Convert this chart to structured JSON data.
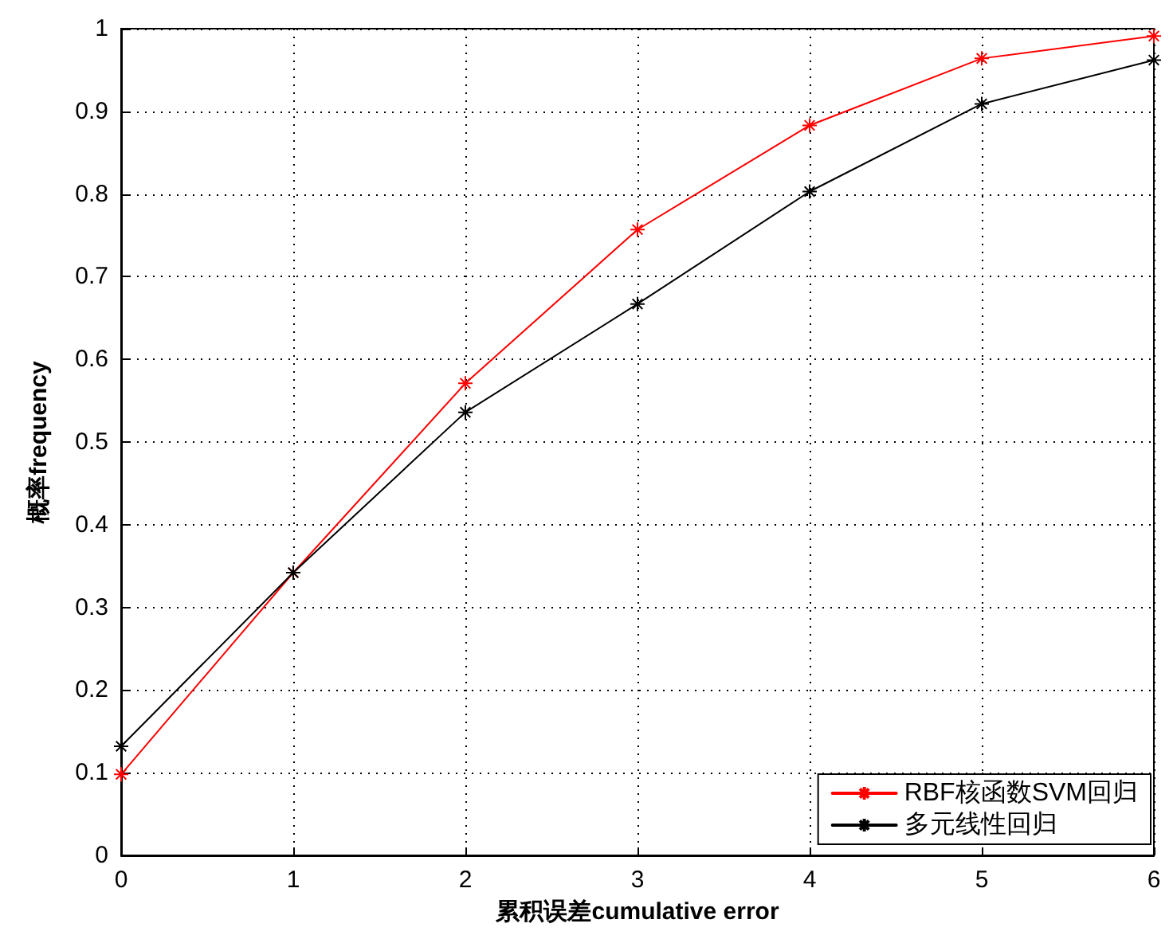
{
  "chart_data": {
    "type": "line",
    "xlabel": "累积误差cumulative error",
    "ylabel": "概率frequency",
    "x": [
      0,
      1,
      2,
      3,
      4,
      5,
      6
    ],
    "series": [
      {
        "name": "RBF核函数SVM回归",
        "color": "#ff0000",
        "values": [
          0.098,
          0.342,
          0.571,
          0.757,
          0.883,
          0.964,
          0.991
        ]
      },
      {
        "name": "多元线性回归",
        "color": "#000000",
        "values": [
          0.132,
          0.342,
          0.536,
          0.667,
          0.803,
          0.909,
          0.962
        ]
      }
    ],
    "xlim": [
      0,
      6
    ],
    "xticks": [
      0,
      1,
      2,
      3,
      4,
      5,
      6
    ],
    "ylim": [
      0,
      1
    ],
    "yticks": [
      0,
      0.1,
      0.2,
      0.3,
      0.4,
      0.5,
      0.6,
      0.7,
      0.8,
      0.9,
      1
    ],
    "grid": true,
    "legend": "bottom right",
    "marker": "cross",
    "line_style": "solid"
  }
}
